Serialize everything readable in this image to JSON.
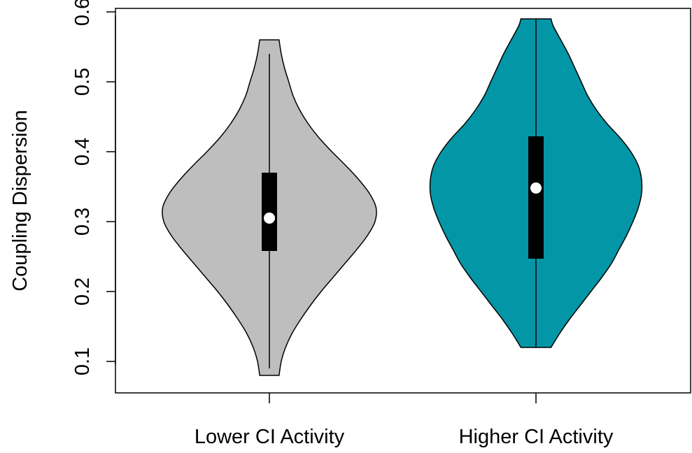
{
  "chart_data": {
    "type": "violin",
    "ylabel": "Coupling Dispersion",
    "xlabel": "",
    "ylim": [
      0.055,
      0.605
    ],
    "y_ticks": [
      "0.1",
      "0.2",
      "0.3",
      "0.4",
      "0.5",
      "0.6"
    ],
    "grid": false,
    "groups": [
      {
        "label": "Lower CI Activity",
        "fill": "#bebebe",
        "min": 0.08,
        "max": 0.56,
        "whisker_low": 0.09,
        "whisker_high": 0.54,
        "q1": 0.258,
        "median": 0.305,
        "q3": 0.37,
        "density": [
          [
            0.08,
            0.09
          ],
          [
            0.1,
            0.11
          ],
          [
            0.12,
            0.15
          ],
          [
            0.14,
            0.21
          ],
          [
            0.16,
            0.29
          ],
          [
            0.18,
            0.38
          ],
          [
            0.2,
            0.48
          ],
          [
            0.22,
            0.59
          ],
          [
            0.24,
            0.7
          ],
          [
            0.26,
            0.81
          ],
          [
            0.28,
            0.91
          ],
          [
            0.3,
            0.98
          ],
          [
            0.32,
            0.99
          ],
          [
            0.34,
            0.93
          ],
          [
            0.36,
            0.83
          ],
          [
            0.38,
            0.71
          ],
          [
            0.4,
            0.58
          ],
          [
            0.42,
            0.46
          ],
          [
            0.44,
            0.36
          ],
          [
            0.46,
            0.28
          ],
          [
            0.48,
            0.22
          ],
          [
            0.5,
            0.18
          ],
          [
            0.52,
            0.14
          ],
          [
            0.54,
            0.11
          ],
          [
            0.56,
            0.09
          ]
        ]
      },
      {
        "label": "Higher CI Activity",
        "fill": "#0396a6",
        "min": 0.12,
        "max": 0.59,
        "whisker_low": 0.12,
        "whisker_high": 0.59,
        "q1": 0.247,
        "median": 0.348,
        "q3": 0.422,
        "density": [
          [
            0.12,
            0.14
          ],
          [
            0.14,
            0.22
          ],
          [
            0.16,
            0.31
          ],
          [
            0.18,
            0.41
          ],
          [
            0.2,
            0.51
          ],
          [
            0.22,
            0.61
          ],
          [
            0.24,
            0.7
          ],
          [
            0.26,
            0.77
          ],
          [
            0.28,
            0.84
          ],
          [
            0.3,
            0.9
          ],
          [
            0.32,
            0.95
          ],
          [
            0.34,
            0.98
          ],
          [
            0.36,
            0.98
          ],
          [
            0.38,
            0.95
          ],
          [
            0.4,
            0.88
          ],
          [
            0.42,
            0.78
          ],
          [
            0.44,
            0.66
          ],
          [
            0.46,
            0.56
          ],
          [
            0.48,
            0.48
          ],
          [
            0.5,
            0.42
          ],
          [
            0.52,
            0.36
          ],
          [
            0.54,
            0.3
          ],
          [
            0.56,
            0.23
          ],
          [
            0.58,
            0.16
          ],
          [
            0.59,
            0.14
          ]
        ]
      }
    ]
  }
}
